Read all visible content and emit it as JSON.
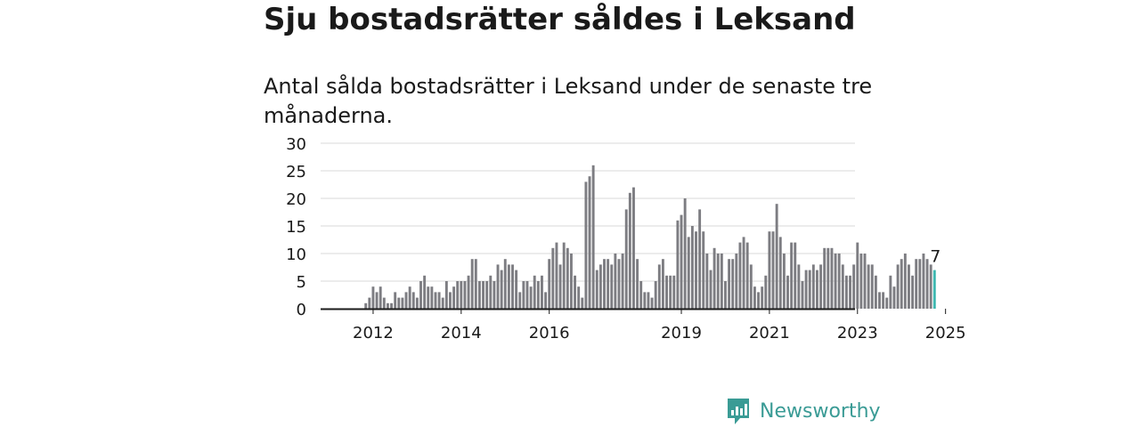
{
  "title": "Sju bostadsrätter såldes i Leksand",
  "subtitle": "Antal sålda bostadsrätter i Leksand under de senaste tre månaderna.",
  "brand": {
    "name": "Newsworthy",
    "icon": "bar-chart-logo-icon",
    "color": "#3a9b95"
  },
  "chart_data": {
    "type": "bar",
    "x_start": "2012-01",
    "x_interval": "month",
    "values": [
      0,
      0,
      0,
      0,
      0,
      0,
      0,
      0,
      0,
      0,
      1,
      2,
      4,
      3,
      4,
      2,
      1,
      1,
      3,
      2,
      2,
      3,
      4,
      3,
      2,
      5,
      6,
      4,
      4,
      3,
      3,
      2,
      5,
      3,
      4,
      5,
      5,
      5,
      6,
      9,
      9,
      5,
      5,
      5,
      6,
      5,
      8,
      7,
      9,
      8,
      8,
      7,
      3,
      5,
      5,
      4,
      6,
      5,
      6,
      3,
      9,
      11,
      12,
      8,
      12,
      11,
      10,
      6,
      4,
      2,
      23,
      24,
      26,
      7,
      8,
      9,
      9,
      8,
      10,
      9,
      10,
      18,
      21,
      22,
      9,
      5,
      3,
      3,
      2,
      5,
      8,
      9,
      6,
      6,
      6,
      16,
      17,
      20,
      13,
      15,
      14,
      18,
      14,
      10,
      7,
      11,
      10,
      10,
      5,
      9,
      9,
      10,
      12,
      13,
      12,
      8,
      4,
      3,
      4,
      6,
      14,
      14,
      19,
      13,
      10,
      6,
      12,
      12,
      8,
      5,
      7,
      7,
      8,
      7,
      8,
      11,
      11,
      11,
      10,
      10,
      8,
      6,
      6,
      8,
      12,
      10,
      10,
      8,
      8,
      6,
      3,
      3,
      2,
      6,
      4,
      8,
      9,
      10,
      8,
      6,
      9,
      9,
      10,
      9,
      8,
      7
    ],
    "highlight_last": true,
    "highlight_value_label": "7",
    "bar_color": "#7d7d82",
    "highlight_color": "#3fb8b0",
    "ylim": [
      0,
      30
    ],
    "yticks": [
      0,
      5,
      10,
      15,
      20,
      25,
      30
    ],
    "xtick_labels": [
      "2012",
      "2014",
      "2016",
      "2019",
      "2021",
      "2023",
      "2025"
    ],
    "xtick_months": [
      12,
      36,
      60,
      96,
      120,
      144,
      168
    ],
    "grid": true
  }
}
